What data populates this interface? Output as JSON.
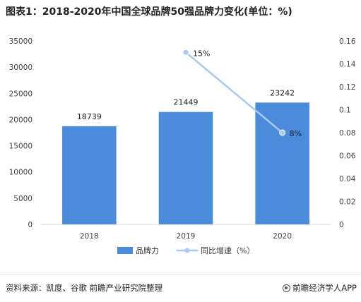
{
  "title": "图表1：2018-2020年中国全球品牌50强品牌力变化(单位：%)",
  "source": "资料来源：凯度、谷歌 前瞻产业研究院整理",
  "brand": "前瞻经济学人APP",
  "colors": {
    "bar": "#4a8bdc",
    "line": "#a9c9ee",
    "marker": "#a9c9ee",
    "axis_text": "#444444",
    "grid": "#d9d9d9"
  },
  "chart_data": {
    "type": "bar",
    "categories": [
      "2018",
      "2019",
      "2020"
    ],
    "series": [
      {
        "name": "品牌力",
        "type": "bar",
        "axis": "left",
        "values": [
          18739,
          21449,
          23242
        ]
      },
      {
        "name": "同比增速（%）",
        "type": "line",
        "axis": "right",
        "values": [
          null,
          0.15,
          0.08
        ],
        "labels": [
          "",
          "15%",
          "8%"
        ]
      }
    ],
    "left_axis": {
      "min": 0,
      "max": 35000,
      "ticks": [
        "0",
        "5000",
        "10000",
        "15000",
        "20000",
        "25000",
        "30000",
        "35000"
      ]
    },
    "right_axis": {
      "min": 0,
      "max": 0.16,
      "ticks": [
        "0",
        "0.02",
        "0.04",
        "0.06",
        "0.08",
        "0.1",
        "0.12",
        "0.14",
        "0.16"
      ]
    },
    "legend_position": "bottom",
    "grid": false
  }
}
